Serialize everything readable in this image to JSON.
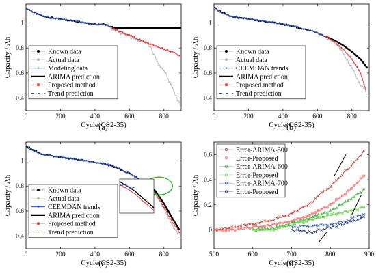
{
  "chart_data": [
    {
      "panel": "(a)",
      "type": "line",
      "xlabel": "Cycle(CS2-35)",
      "ylabel": "Capacity / Ah",
      "xlim": [
        0,
        900
      ],
      "ylim": [
        0.3,
        1.15
      ],
      "xticks": [
        0,
        200,
        400,
        600,
        800
      ],
      "yticks": [
        0.4,
        0.6,
        0.8,
        1
      ],
      "legend_position": "bottom-left",
      "series": [
        {
          "name": "Known data",
          "color": "#000000",
          "marker": "dot",
          "x": [
            0,
            50,
            100,
            150,
            200,
            250,
            300,
            350,
            400,
            450,
            500
          ],
          "y": [
            1.12,
            1.08,
            1.05,
            1.04,
            1.03,
            1.02,
            1.01,
            1.0,
            0.99,
            0.99,
            0.97
          ]
        },
        {
          "name": "Actual data",
          "color": "#b8b8b8",
          "marker": "dot",
          "x": [
            500,
            550,
            600,
            650,
            700,
            725,
            750,
            775,
            800,
            825,
            850,
            875,
            900
          ],
          "y": [
            0.95,
            0.92,
            0.89,
            0.86,
            0.84,
            0.8,
            0.72,
            0.66,
            0.62,
            0.55,
            0.48,
            0.4,
            0.33
          ]
        },
        {
          "name": "Modeling data",
          "color": "#1f4fcf",
          "marker": "line",
          "x": [
            0,
            50,
            100,
            150,
            200,
            250,
            300,
            350,
            400,
            450,
            500
          ],
          "y": [
            1.12,
            1.08,
            1.055,
            1.04,
            1.03,
            1.02,
            1.01,
            1.0,
            0.99,
            0.985,
            0.965
          ]
        },
        {
          "name": "ARIMA prediction",
          "color": "#000000",
          "marker": "thick",
          "x": [
            500,
            600,
            700,
            800,
            900
          ],
          "y": [
            0.96,
            0.96,
            0.96,
            0.96,
            0.96
          ]
        },
        {
          "name": "Proposed method",
          "color": "#e53030",
          "marker": "dot",
          "x": [
            500,
            550,
            600,
            650,
            700,
            750,
            800,
            850,
            890
          ],
          "y": [
            0.96,
            0.93,
            0.9,
            0.87,
            0.84,
            0.82,
            0.79,
            0.77,
            0.74
          ]
        },
        {
          "name": "Trend prediction",
          "color": "#2050d0",
          "marker": "dashdot",
          "x": [],
          "y": []
        }
      ]
    },
    {
      "panel": "(b)",
      "type": "line",
      "xlabel": "Cycle(CS2-35)",
      "ylabel": "Capacity / Ah",
      "xlim": [
        0,
        900
      ],
      "ylim": [
        0.3,
        1.15
      ],
      "xticks": [
        0,
        200,
        400,
        600,
        800
      ],
      "yticks": [
        0.4,
        0.6,
        0.8,
        1
      ],
      "legend_position": "bottom-left",
      "series": [
        {
          "name": "Known data",
          "color": "#000000",
          "marker": "dot",
          "x": [
            0,
            100,
            200,
            300,
            400,
            500,
            600,
            650
          ],
          "y": [
            1.12,
            1.05,
            1.03,
            1.01,
            0.99,
            0.96,
            0.92,
            0.89
          ]
        },
        {
          "name": "Actual data",
          "color": "#b8b8b8",
          "marker": "dot",
          "x": [
            650,
            700,
            750,
            800,
            850,
            880
          ],
          "y": [
            0.88,
            0.84,
            0.76,
            0.64,
            0.5,
            0.46
          ]
        },
        {
          "name": "CEEMDAN trends",
          "color": "#1f4fcf",
          "marker": "line",
          "x": [
            0,
            100,
            200,
            300,
            400,
            500,
            600,
            650
          ],
          "y": [
            1.11,
            1.05,
            1.03,
            1.01,
            0.99,
            0.965,
            0.92,
            0.89
          ]
        },
        {
          "name": "ARIMA prediction",
          "color": "#000000",
          "marker": "thick",
          "x": [
            650,
            700,
            750,
            800,
            850,
            890
          ],
          "y": [
            0.89,
            0.86,
            0.82,
            0.77,
            0.71,
            0.64
          ]
        },
        {
          "name": "Proposed method",
          "color": "#e53030",
          "marker": "dot",
          "x": [
            650,
            700,
            750,
            800,
            850,
            880
          ],
          "y": [
            0.89,
            0.85,
            0.79,
            0.71,
            0.6,
            0.47
          ]
        },
        {
          "name": "Trend prediction",
          "color": "#2050d0",
          "marker": "dashdot",
          "x": [],
          "y": []
        }
      ]
    },
    {
      "panel": "(c)",
      "type": "line",
      "xlabel": "Cycle(CS2-35)",
      "ylabel": "Capacity / Ah",
      "xlim": [
        0,
        900
      ],
      "ylim": [
        0.3,
        1.15
      ],
      "xticks": [
        0,
        200,
        400,
        600,
        800
      ],
      "yticks": [
        0.4,
        0.6,
        0.8,
        1
      ],
      "legend_position": "bottom-left",
      "series": [
        {
          "name": "Known data",
          "color": "#000000",
          "marker": "dot",
          "x": [
            0,
            100,
            200,
            300,
            400,
            500,
            600,
            700
          ],
          "y": [
            1.12,
            1.05,
            1.03,
            1.01,
            0.99,
            0.96,
            0.9,
            0.82
          ]
        },
        {
          "name": "Actual data",
          "color": "#b8b8b8",
          "marker": "dot",
          "x": [
            700,
            750,
            800,
            850,
            880
          ],
          "y": [
            0.8,
            0.74,
            0.62,
            0.48,
            0.42
          ]
        },
        {
          "name": "CEEMDAN trends",
          "color": "#1f4fcf",
          "marker": "line",
          "x": [
            0,
            100,
            200,
            300,
            400,
            500,
            600,
            700
          ],
          "y": [
            1.11,
            1.05,
            1.03,
            1.01,
            0.99,
            0.965,
            0.9,
            0.82
          ]
        },
        {
          "name": "ARIMA prediction",
          "color": "#000000",
          "marker": "thick",
          "x": [
            700,
            750,
            800,
            850,
            890
          ],
          "y": [
            0.82,
            0.76,
            0.66,
            0.54,
            0.45
          ]
        },
        {
          "name": "Proposed method",
          "color": "#e53030",
          "marker": "dot",
          "x": [
            700,
            750,
            800,
            850,
            890
          ],
          "y": [
            0.81,
            0.74,
            0.63,
            0.51,
            0.43
          ]
        },
        {
          "name": "Trend prediction",
          "color": "#2050d0",
          "marker": "dashdot",
          "x": [],
          "y": []
        }
      ]
    },
    {
      "panel": "(d)",
      "type": "line",
      "xlabel": "Cycle(CS2-35)",
      "ylabel": "Capacity / Ah",
      "xlim": [
        500,
        900
      ],
      "ylim": [
        -0.15,
        0.7
      ],
      "xticks": [
        500,
        600,
        700,
        800,
        900
      ],
      "yticks": [
        0,
        0.2,
        0.4,
        0.6
      ],
      "legend_position": "top-left",
      "series": [
        {
          "name": "Error-ARIMA-500",
          "color": "#c0392b",
          "marker": "x",
          "x": [
            500,
            550,
            600,
            650,
            700,
            750,
            800,
            850,
            890
          ],
          "y": [
            0,
            0.02,
            0.05,
            0.08,
            0.13,
            0.22,
            0.35,
            0.5,
            0.64
          ]
        },
        {
          "name": "Error-Proposed",
          "color": "#ff6060",
          "marker": "o",
          "x": [
            500,
            550,
            600,
            650,
            700,
            750,
            800,
            850,
            890
          ],
          "y": [
            0,
            0.0,
            0.02,
            0.04,
            0.07,
            0.12,
            0.2,
            0.32,
            0.44
          ]
        },
        {
          "name": "Error-ARIMA-600",
          "color": "#33aa33",
          "marker": "^",
          "x": [
            600,
            650,
            700,
            750,
            800,
            850,
            890
          ],
          "y": [
            0,
            0.01,
            0.05,
            0.1,
            0.15,
            0.24,
            0.33
          ]
        },
        {
          "name": "Error-Proposed",
          "color": "#66cc44",
          "marker": "o",
          "x": [
            600,
            650,
            700,
            750,
            800,
            850,
            890
          ],
          "y": [
            0,
            0.0,
            0.04,
            0.08,
            0.12,
            0.15,
            0.18
          ]
        },
        {
          "name": "Error-ARIMA-700",
          "color": "#2a5fb0",
          "marker": "+",
          "x": [
            700,
            750,
            800,
            850,
            890
          ],
          "y": [
            0.02,
            0.03,
            0.04,
            0.08,
            0.13
          ]
        },
        {
          "name": "Error-Proposed",
          "color": "#1a2a6a",
          "marker": "*",
          "x": [
            700,
            750,
            800,
            850,
            890
          ],
          "y": [
            0,
            -0.02,
            0.02,
            0.06,
            0.1
          ]
        }
      ]
    }
  ]
}
